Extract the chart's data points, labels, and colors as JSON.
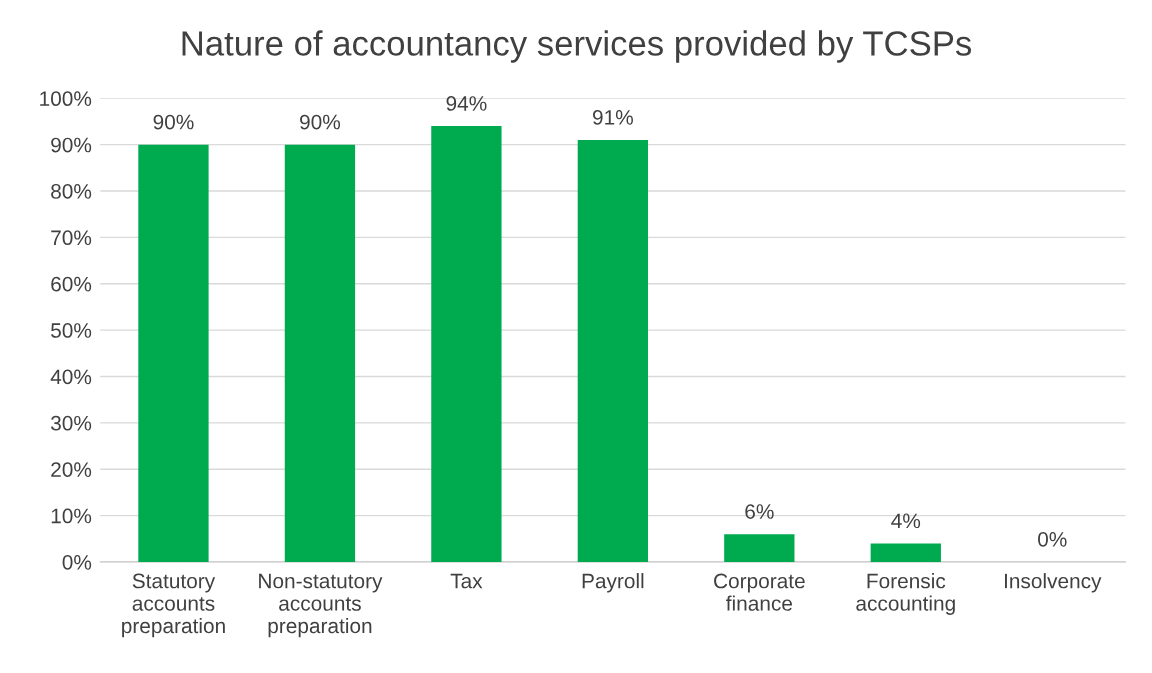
{
  "chart_data": {
    "type": "bar",
    "title": "Nature of accountancy services provided by TCSPs",
    "categories": [
      "Statutory\naccounts\npreparation",
      "Non-statutory\naccounts\npreparation",
      "Tax",
      "Payroll",
      "Corporate\nfinance",
      "Forensic\naccounting",
      "Insolvency"
    ],
    "values": [
      90,
      90,
      94,
      91,
      6,
      4,
      0
    ],
    "value_labels": [
      "90%",
      "90%",
      "94%",
      "91%",
      "6%",
      "4%",
      "0%"
    ],
    "color": "#00aa4f",
    "ylim": [
      0,
      100
    ],
    "yticks": [
      {
        "value": 0,
        "label": "0%"
      },
      {
        "value": 10,
        "label": "10%"
      },
      {
        "value": 20,
        "label": "20%"
      },
      {
        "value": 30,
        "label": "30%"
      },
      {
        "value": 40,
        "label": "40%"
      },
      {
        "value": 50,
        "label": "50%"
      },
      {
        "value": 60,
        "label": "60%"
      },
      {
        "value": 70,
        "label": "70%"
      },
      {
        "value": 80,
        "label": "80%"
      },
      {
        "value": 90,
        "label": "90%"
      },
      {
        "value": 100,
        "label": "100%"
      }
    ],
    "grid": "y"
  }
}
